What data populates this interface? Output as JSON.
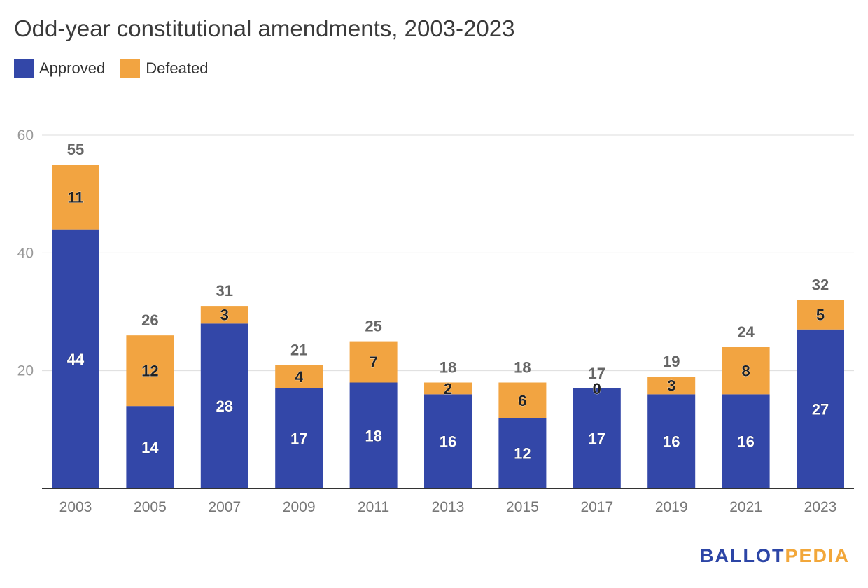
{
  "chart_data": {
    "type": "bar",
    "stacked": true,
    "title": "Odd-year constitutional amendments, 2003-2023",
    "categories": [
      "2003",
      "2005",
      "2007",
      "2009",
      "2011",
      "2013",
      "2015",
      "2017",
      "2019",
      "2021",
      "2023"
    ],
    "series": [
      {
        "name": "Approved",
        "color": "#3347a8",
        "values": [
          44,
          14,
          28,
          17,
          18,
          16,
          12,
          17,
          16,
          16,
          27
        ]
      },
      {
        "name": "Defeated",
        "color": "#f2a441",
        "values": [
          11,
          12,
          3,
          4,
          7,
          2,
          6,
          0,
          3,
          8,
          5
        ]
      }
    ],
    "totals": [
      55,
      26,
      31,
      21,
      25,
      18,
      18,
      17,
      19,
      24,
      32
    ],
    "ylim": [
      0,
      60
    ],
    "yticks": [
      20,
      40,
      60
    ],
    "grid": true,
    "legend_position": "top-left"
  },
  "branding": {
    "logo_part1": "BALLOT",
    "logo_part2": "PEDIA"
  }
}
